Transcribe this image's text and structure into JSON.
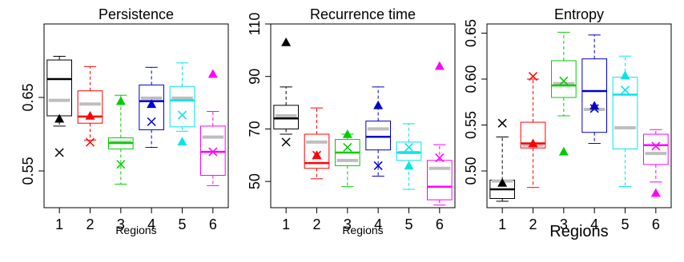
{
  "chart_data": [
    {
      "type": "boxplot",
      "title": "Persistence",
      "xlabel": "Regions",
      "ylim": [
        0.5,
        0.75
      ],
      "yticks": [
        0.55,
        0.65
      ],
      "ytick_labels": [
        "0.55",
        "0.65"
      ],
      "categories": [
        "1",
        "2",
        "3",
        "4",
        "5",
        "6"
      ],
      "grid": false,
      "boxes": [
        {
          "region": "1",
          "color": "#000000",
          "whisker_low": 0.611,
          "q1": 0.625,
          "median": 0.675,
          "q3": 0.701,
          "whisker_high": 0.706,
          "gray": 0.646,
          "triangle": 0.621,
          "cross": 0.575
        },
        {
          "region": "2",
          "color": "#ff0000",
          "whisker_low": 0.592,
          "q1": 0.615,
          "median": 0.624,
          "q3": 0.659,
          "whisker_high": 0.692,
          "gray": 0.641,
          "triangle": 0.625,
          "cross": 0.589
        },
        {
          "region": "3",
          "color": "#00cd00",
          "whisker_low": 0.532,
          "q1": 0.58,
          "median": 0.588,
          "q3": 0.595,
          "whisker_high": 0.653,
          "gray": 0.589,
          "triangle": 0.645,
          "cross": 0.559
        },
        {
          "region": "4",
          "color": "#0000cd",
          "whisker_low": 0.582,
          "q1": 0.606,
          "median": 0.645,
          "q3": 0.667,
          "whisker_high": 0.691,
          "gray": 0.649,
          "triangle": 0.641,
          "cross": 0.617
        },
        {
          "region": "5",
          "color": "#00e5ee",
          "whisker_low": 0.604,
          "q1": 0.61,
          "median": 0.646,
          "q3": 0.665,
          "whisker_high": 0.697,
          "gray": 0.649,
          "triangle": 0.59,
          "cross": 0.626
        },
        {
          "region": "6",
          "color": "#ff00ff",
          "whisker_low": 0.53,
          "q1": 0.544,
          "median": 0.576,
          "q3": 0.611,
          "whisker_high": 0.631,
          "gray": 0.596,
          "triangle": 0.682,
          "cross": 0.576
        }
      ]
    },
    {
      "type": "boxplot",
      "title": "Recurrence time",
      "xlabel": "Regions",
      "ylim": [
        40,
        110
      ],
      "yticks": [
        50,
        70,
        90,
        110
      ],
      "ytick_labels": [
        "50",
        "70",
        "90",
        "110"
      ],
      "categories": [
        "1",
        "2",
        "3",
        "4",
        "5",
        "6"
      ],
      "grid": false,
      "boxes": [
        {
          "region": "1",
          "color": "#000000",
          "whisker_low": 68,
          "q1": 70,
          "median": 74,
          "q3": 79,
          "whisker_high": 86,
          "gray": 75,
          "triangle": 103,
          "cross": 65
        },
        {
          "region": "2",
          "color": "#ff0000",
          "whisker_low": 51,
          "q1": 55,
          "median": 57,
          "q3": 68,
          "whisker_high": 78,
          "gray": 65,
          "triangle": 60,
          "cross": 60
        },
        {
          "region": "3",
          "color": "#00cd00",
          "whisker_low": 48,
          "q1": 56,
          "median": 61,
          "q3": 66,
          "whisker_high": 68,
          "gray": 58,
          "triangle": 68,
          "cross": 63
        },
        {
          "region": "4",
          "color": "#0000cd",
          "whisker_low": 52,
          "q1": 62,
          "median": 67,
          "q3": 73,
          "whisker_high": 86,
          "gray": 70,
          "triangle": 79,
          "cross": 56
        },
        {
          "region": "5",
          "color": "#00e5ee",
          "whisker_low": 47,
          "q1": 58,
          "median": 61,
          "q3": 65,
          "whisker_high": 72,
          "gray": 61,
          "triangle": 56,
          "cross": 63
        },
        {
          "region": "6",
          "color": "#ff00ff",
          "whisker_low": 41,
          "q1": 43,
          "median": 48,
          "q3": 58,
          "whisker_high": 64,
          "gray": 55,
          "triangle": 94,
          "cross": 59
        }
      ]
    },
    {
      "type": "boxplot",
      "title": "Entropy",
      "xlabel": "Regions",
      "ylim": [
        0.46,
        0.66
      ],
      "yticks": [
        0.5,
        0.55,
        0.6,
        0.65
      ],
      "ytick_labels": [
        "0.50",
        "0.55",
        "0.60",
        "0.65"
      ],
      "categories": [
        "1",
        "2",
        "3",
        "4",
        "5",
        "6"
      ],
      "grid": false,
      "boxes": [
        {
          "region": "1",
          "color": "#000000",
          "whisker_low": 0.467,
          "q1": 0.47,
          "median": 0.48,
          "q3": 0.49,
          "whisker_high": 0.537,
          "gray": 0.489,
          "triangle": 0.487,
          "cross": 0.552
        },
        {
          "region": "2",
          "color": "#ff0000",
          "whisker_low": 0.482,
          "q1": 0.525,
          "median": 0.53,
          "q3": 0.553,
          "whisker_high": 0.6,
          "gray": 0.528,
          "triangle": 0.53,
          "cross": 0.603
        },
        {
          "region": "3",
          "color": "#00cd00",
          "whisker_low": 0.56,
          "q1": 0.58,
          "median": 0.593,
          "q3": 0.62,
          "whisker_high": 0.651,
          "gray": 0.595,
          "triangle": 0.521,
          "cross": 0.598
        },
        {
          "region": "4",
          "color": "#0000cd",
          "whisker_low": 0.53,
          "q1": 0.542,
          "median": 0.587,
          "q3": 0.622,
          "whisker_high": 0.648,
          "gray": 0.567,
          "triangle": 0.571,
          "cross": 0.568
        },
        {
          "region": "5",
          "color": "#00e5ee",
          "whisker_low": 0.483,
          "q1": 0.524,
          "median": 0.583,
          "q3": 0.602,
          "whisker_high": 0.625,
          "gray": 0.547,
          "triangle": 0.604,
          "cross": 0.588
        },
        {
          "region": "6",
          "color": "#ff00ff",
          "whisker_low": 0.488,
          "q1": 0.507,
          "median": 0.528,
          "q3": 0.54,
          "whisker_high": 0.545,
          "gray": 0.519,
          "triangle": 0.476,
          "cross": 0.527
        }
      ]
    }
  ]
}
